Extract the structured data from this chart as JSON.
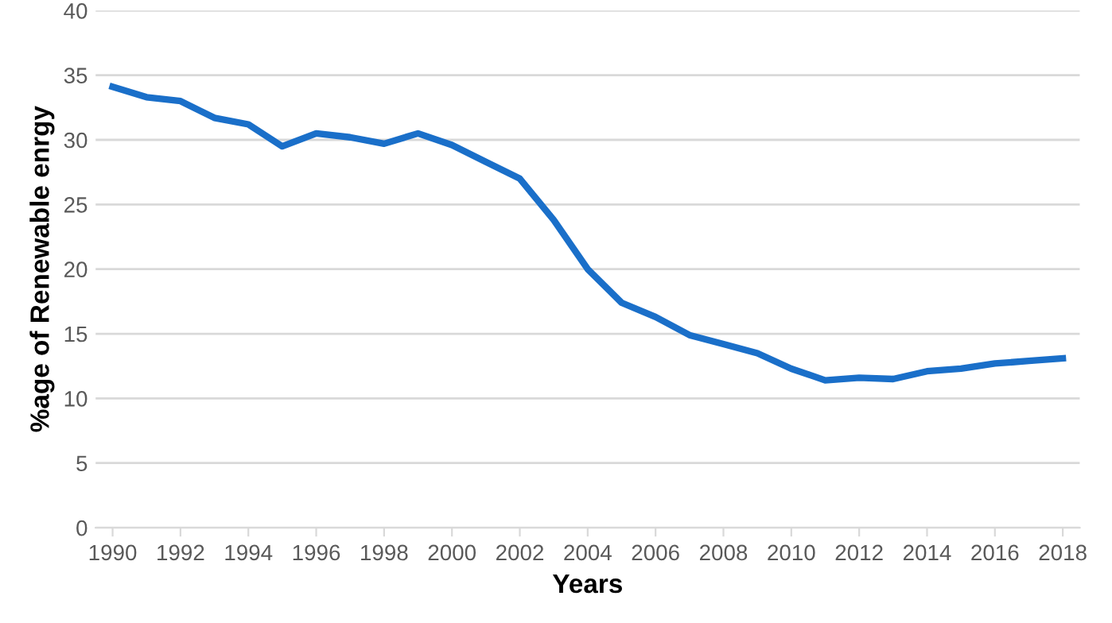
{
  "chart_data": {
    "type": "line",
    "xlabel": "Years",
    "ylabel": "%age of Renewable enrgy",
    "x": [
      1990,
      1991,
      1992,
      1993,
      1994,
      1995,
      1996,
      1997,
      1998,
      1999,
      2000,
      2001,
      2002,
      2003,
      2004,
      2005,
      2006,
      2007,
      2008,
      2009,
      2010,
      2011,
      2012,
      2013,
      2014,
      2015,
      2016,
      2017,
      2018
    ],
    "series": [
      {
        "color": "#1a6fc9",
        "values": [
          34.1,
          33.3,
          33.0,
          31.7,
          31.2,
          29.5,
          30.5,
          30.2,
          29.7,
          30.5,
          29.6,
          28.3,
          27.0,
          23.8,
          20.0,
          17.4,
          16.3,
          14.9,
          14.2,
          13.5,
          12.3,
          11.4,
          11.6,
          11.5,
          12.1,
          12.3,
          12.7,
          12.9,
          13.1
        ]
      }
    ],
    "xlim": [
      1989.5,
      2018.5
    ],
    "xticks": [
      1990,
      1992,
      1994,
      1996,
      1998,
      2000,
      2002,
      2004,
      2006,
      2008,
      2010,
      2012,
      2014,
      2016,
      2018
    ],
    "ylim": [
      0,
      40
    ],
    "yticks": [
      0,
      5,
      10,
      15,
      20,
      25,
      30,
      35,
      40
    ],
    "grid": "y",
    "marker": "none",
    "line_style": "solid"
  }
}
